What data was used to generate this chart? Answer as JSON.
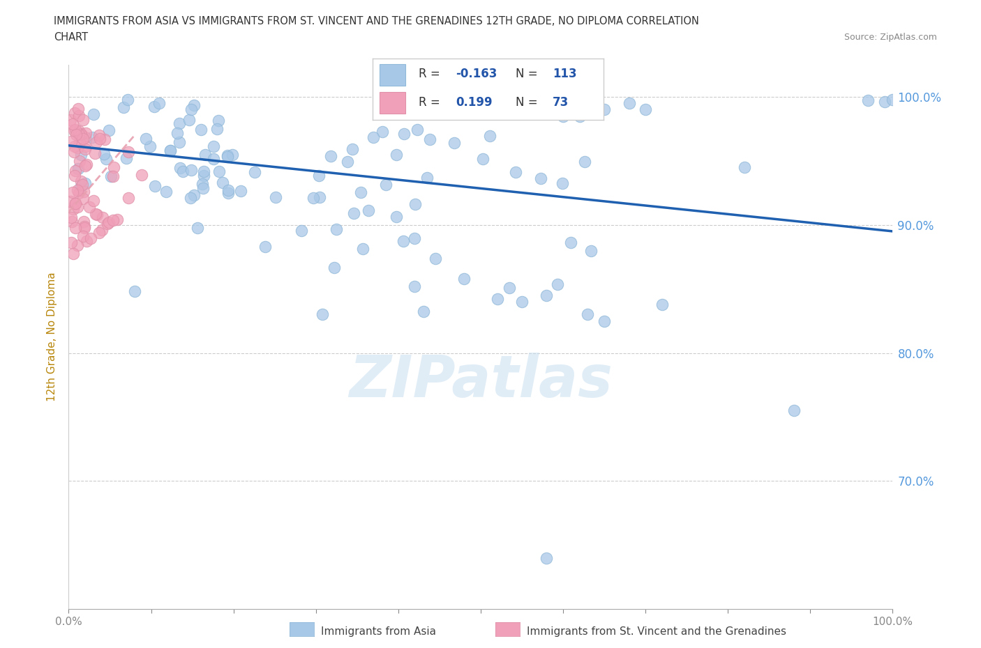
{
  "title_line1": "IMMIGRANTS FROM ASIA VS IMMIGRANTS FROM ST. VINCENT AND THE GRENADINES 12TH GRADE, NO DIPLOMA CORRELATION",
  "title_line2": "CHART",
  "source_text": "Source: ZipAtlas.com",
  "ylabel": "12th Grade, No Diploma",
  "color_asia": "#a8c8e8",
  "color_svg": "#f0a0b8",
  "color_asia_line": "#2060b0",
  "color_svg_line": "#d04060",
  "color_svg_trendline": "#e8a0b0",
  "watermark": "ZIPatlas",
  "legend_R1": "-0.163",
  "legend_N1": "113",
  "legend_R2": "0.199",
  "legend_N2": "73",
  "asia_trend_x0": 0.0,
  "asia_trend_y0": 0.962,
  "asia_trend_x1": 1.0,
  "asia_trend_y1": 0.895,
  "svg_trend_x0": 0.0,
  "svg_trend_y0": 0.91,
  "svg_trend_x1": 0.08,
  "svg_trend_y1": 0.97,
  "ylim_low": 0.6,
  "ylim_high": 1.025,
  "xlim_low": 0.0,
  "xlim_high": 1.0,
  "yticks": [
    0.7,
    0.8,
    0.9,
    1.0
  ],
  "ytick_labels": [
    "70.0%",
    "80.0%",
    "90.0%",
    "100.0%"
  ]
}
